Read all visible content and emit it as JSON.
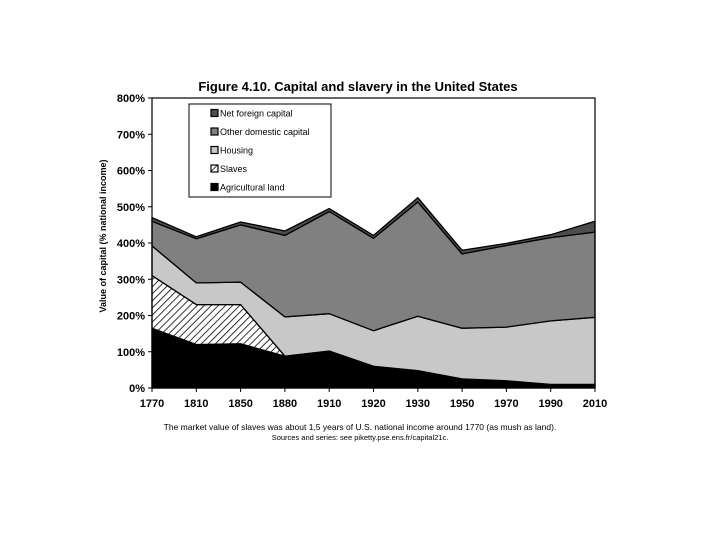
{
  "chart_data": {
    "type": "area",
    "title": "Figure 4.10. Capital and slavery in the United States",
    "ylabel": "Value of capital (% national income)",
    "xlabel": "",
    "x": [
      1770,
      1810,
      1850,
      1880,
      1910,
      1920,
      1930,
      1950,
      1970,
      1990,
      2010
    ],
    "x_tick_labels": [
      "1770",
      "1810",
      "1850",
      "1880",
      "1910",
      "1920",
      "1930",
      "1950",
      "1970",
      "1990",
      "2010"
    ],
    "ylim": [
      0,
      800
    ],
    "y_ticks": [
      0,
      100,
      200,
      300,
      400,
      500,
      600,
      700,
      800
    ],
    "y_tick_labels": [
      "0%",
      "100%",
      "200%",
      "300%",
      "400%",
      "500%",
      "600%",
      "700%",
      "800%"
    ],
    "stacked": true,
    "grid": false,
    "legend_position": "top-left",
    "series": [
      {
        "name": "Agricultural land",
        "values": [
          165,
          120,
          122,
          88,
          102,
          60,
          48,
          25,
          20,
          10,
          10
        ],
        "fill": "#000000"
      },
      {
        "name": "Slaves",
        "values": [
          145,
          110,
          108,
          0,
          0,
          0,
          0,
          0,
          0,
          0,
          0
        ],
        "fill": "hatch"
      },
      {
        "name": "Housing",
        "values": [
          82,
          60,
          62,
          108,
          103,
          98,
          150,
          140,
          148,
          175,
          185
        ],
        "fill": "#c8c8c8"
      },
      {
        "name": "Other domestic capital",
        "values": [
          68,
          122,
          158,
          225,
          282,
          255,
          315,
          205,
          225,
          230,
          235
        ],
        "fill": "#808080"
      },
      {
        "name": "Net foreign capital",
        "values": [
          10,
          5,
          8,
          12,
          8,
          8,
          12,
          10,
          6,
          8,
          30
        ],
        "fill": "#4d4d4d"
      }
    ],
    "legend_order": [
      "Net foreign capital",
      "Other domestic capital",
      "Housing",
      "Slaves",
      "Agricultural land"
    ]
  },
  "caption": {
    "line1": "The market value of slaves was about 1,5 years of U.S. national income around 1770 (as mush as land).",
    "line2": "Sources and series: see piketty.pse.ens.fr/capital21c."
  }
}
